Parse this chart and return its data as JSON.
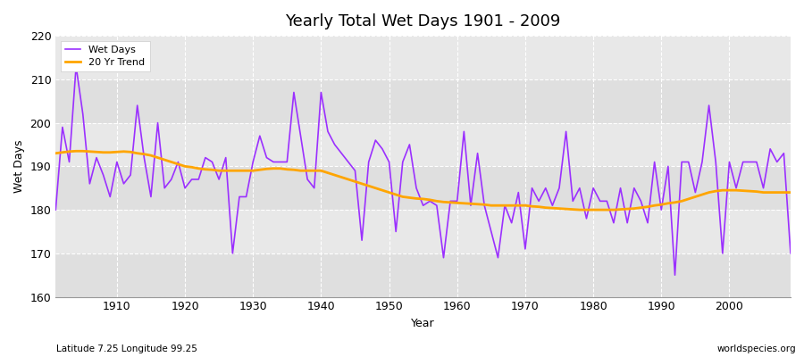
{
  "title": "Yearly Total Wet Days 1901 - 2009",
  "xlabel": "Year",
  "ylabel": "Wet Days",
  "subtitle": "Latitude 7.25 Longitude 99.25",
  "watermark": "worldspecies.org",
  "wet_days_color": "#9B30FF",
  "trend_color": "#FFA500",
  "bg_color": "#E8E8E8",
  "bg_band_color": "#DCDCDC",
  "ylim": [
    160,
    220
  ],
  "years": [
    1901,
    1902,
    1903,
    1904,
    1905,
    1906,
    1907,
    1908,
    1909,
    1910,
    1911,
    1912,
    1913,
    1914,
    1915,
    1916,
    1917,
    1918,
    1919,
    1920,
    1921,
    1922,
    1923,
    1924,
    1925,
    1926,
    1927,
    1928,
    1929,
    1930,
    1931,
    1932,
    1933,
    1934,
    1935,
    1936,
    1937,
    1938,
    1939,
    1940,
    1941,
    1942,
    1943,
    1944,
    1945,
    1946,
    1947,
    1948,
    1949,
    1950,
    1951,
    1952,
    1953,
    1954,
    1955,
    1956,
    1957,
    1958,
    1959,
    1960,
    1961,
    1962,
    1963,
    1964,
    1965,
    1966,
    1967,
    1968,
    1969,
    1970,
    1971,
    1972,
    1973,
    1974,
    1975,
    1976,
    1977,
    1978,
    1979,
    1980,
    1981,
    1982,
    1983,
    1984,
    1985,
    1986,
    1987,
    1988,
    1989,
    1990,
    1991,
    1992,
    1993,
    1994,
    1995,
    1996,
    1997,
    1998,
    1999,
    2000,
    2001,
    2002,
    2003,
    2004,
    2005,
    2006,
    2007,
    2008,
    2009
  ],
  "wet_days": [
    180,
    199,
    191,
    213,
    202,
    186,
    192,
    188,
    183,
    191,
    186,
    188,
    204,
    192,
    183,
    200,
    185,
    187,
    191,
    185,
    187,
    187,
    192,
    191,
    187,
    192,
    170,
    183,
    183,
    191,
    197,
    192,
    191,
    191,
    191,
    207,
    197,
    187,
    185,
    207,
    198,
    195,
    193,
    191,
    189,
    173,
    191,
    196,
    194,
    191,
    175,
    191,
    195,
    185,
    181,
    182,
    181,
    169,
    182,
    182,
    198,
    181,
    193,
    181,
    175,
    169,
    181,
    177,
    184,
    171,
    185,
    182,
    185,
    181,
    185,
    198,
    182,
    185,
    178,
    185,
    182,
    182,
    177,
    185,
    177,
    185,
    182,
    177,
    191,
    180,
    190,
    165,
    191,
    191,
    184,
    191,
    204,
    191,
    170,
    191,
    185,
    191,
    191,
    191,
    185,
    194,
    191,
    193,
    170
  ],
  "trend_years": [
    1901,
    1902,
    1903,
    1904,
    1905,
    1906,
    1907,
    1908,
    1909,
    1910,
    1911,
    1912,
    1913,
    1914,
    1915,
    1916,
    1917,
    1918,
    1919,
    1920,
    1921,
    1922,
    1923,
    1924,
    1925,
    1926,
    1927,
    1928,
    1929,
    1930,
    1931,
    1932,
    1933,
    1934,
    1935,
    1936,
    1937,
    1938,
    1939,
    1940,
    1941,
    1942,
    1943,
    1944,
    1945,
    1946,
    1947,
    1948,
    1949,
    1950,
    1951,
    1952,
    1953,
    1954,
    1955,
    1956,
    1957,
    1958,
    1959,
    1960,
    1961,
    1962,
    1963,
    1964,
    1965,
    1966,
    1967,
    1968,
    1969,
    1970,
    1971,
    1972,
    1973,
    1974,
    1975,
    1976,
    1977,
    1978,
    1979,
    1980,
    1981,
    1982,
    1983,
    1984,
    1985,
    1986,
    1987,
    1988,
    1989,
    1990,
    1991,
    1992,
    1993,
    1994,
    1995,
    1996,
    1997,
    1998,
    1999,
    2000,
    2001,
    2002,
    2003,
    2004,
    2005,
    2006,
    2007,
    2008,
    2009
  ],
  "trend_vals": [
    193.0,
    193.2,
    193.4,
    193.5,
    193.5,
    193.4,
    193.3,
    193.2,
    193.2,
    193.3,
    193.4,
    193.3,
    193.0,
    192.8,
    192.5,
    192.0,
    191.5,
    191.0,
    190.5,
    190.0,
    189.8,
    189.5,
    189.3,
    189.2,
    189.0,
    189.0,
    189.0,
    189.0,
    189.0,
    189.0,
    189.2,
    189.4,
    189.5,
    189.5,
    189.3,
    189.2,
    189.0,
    189.0,
    189.0,
    189.0,
    188.5,
    188.0,
    187.5,
    187.0,
    186.5,
    186.0,
    185.5,
    185.0,
    184.5,
    184.0,
    183.5,
    183.0,
    182.8,
    182.6,
    182.5,
    182.3,
    182.0,
    181.8,
    181.7,
    181.6,
    181.5,
    181.4,
    181.3,
    181.2,
    181.0,
    181.0,
    181.0,
    181.0,
    181.0,
    181.0,
    180.8,
    180.7,
    180.5,
    180.4,
    180.3,
    180.2,
    180.1,
    180.0,
    180.0,
    180.0,
    180.0,
    180.0,
    180.0,
    180.1,
    180.2,
    180.3,
    180.5,
    180.7,
    181.0,
    181.2,
    181.5,
    181.7,
    182.0,
    182.5,
    183.0,
    183.5,
    184.0,
    184.3,
    184.5,
    184.5,
    184.5,
    184.4,
    184.3,
    184.2,
    184.0,
    184.0,
    184.0,
    184.0,
    184.0
  ]
}
